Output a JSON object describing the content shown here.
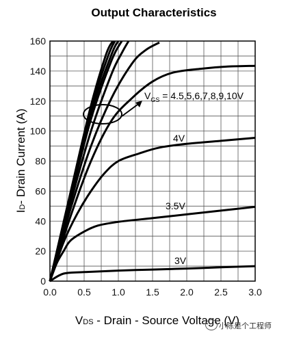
{
  "chart_data": {
    "type": "line",
    "title": "Output Characteristics",
    "xlabel": "V DS - Drain - Source Voltage (V)",
    "xlabel_sub": "DS",
    "xlabel_main": "V",
    "xlabel_rest": " - Drain - Source Voltage (V)",
    "ylabel": "I D - Drain Current (A)",
    "ylabel_main": "I",
    "ylabel_sub": "D",
    "ylabel_rest": "- Drain Current (A)",
    "xlim": [
      0,
      3.0
    ],
    "ylim": [
      0,
      160
    ],
    "xticks": [
      "0.0",
      "0.5",
      "1.0",
      "1.5",
      "2.0",
      "2.5",
      "3.0"
    ],
    "yticks": [
      "0",
      "20",
      "40",
      "60",
      "80",
      "100",
      "120",
      "140",
      "160"
    ],
    "grid": true,
    "series": [
      {
        "name": "3V",
        "x": [
          0,
          0.2,
          0.5,
          1.0,
          1.5,
          2.0,
          2.5,
          3.0
        ],
        "y": [
          0,
          5,
          6,
          7,
          7.7,
          8.4,
          9.2,
          10
        ]
      },
      {
        "name": "3.5V",
        "x": [
          0,
          0.1,
          0.2,
          0.3,
          0.5,
          0.7,
          1.0,
          1.5,
          2.0,
          2.5,
          3.0
        ],
        "y": [
          0,
          12,
          20,
          27,
          33,
          37,
          39.5,
          42,
          44.5,
          47,
          49.5
        ]
      },
      {
        "name": "4V",
        "x": [
          0,
          0.2,
          0.4,
          0.6,
          0.8,
          1.0,
          1.3,
          1.6,
          2.0,
          2.5,
          3.0
        ],
        "y": [
          0,
          26,
          45,
          60,
          72,
          80,
          85,
          89,
          91.5,
          93.5,
          95.5
        ]
      },
      {
        "name": "4.5V",
        "x": [
          0,
          0.3,
          0.6,
          0.9,
          1.2,
          1.5,
          1.8,
          2.2,
          2.6,
          3.0
        ],
        "y": [
          0,
          43,
          80,
          107,
          122,
          133,
          139,
          141.5,
          143,
          143.5
        ]
      },
      {
        "name": "5V",
        "x": [
          0,
          0.3,
          0.6,
          0.9,
          1.2,
          1.4,
          1.6
        ],
        "y": [
          0,
          48,
          90,
          122,
          145,
          154,
          159
        ]
      },
      {
        "name": "6V",
        "x": [
          0,
          0.3,
          0.6,
          0.9,
          1.05,
          1.15
        ],
        "y": [
          0,
          52,
          100,
          138,
          152,
          160
        ]
      },
      {
        "name": "7V",
        "x": [
          0,
          0.3,
          0.6,
          0.9,
          1.05
        ],
        "y": [
          0,
          55,
          108,
          147,
          160
        ]
      },
      {
        "name": "8V",
        "x": [
          0,
          0.3,
          0.6,
          0.9,
          1.0
        ],
        "y": [
          0,
          57,
          112,
          151,
          160
        ]
      },
      {
        "name": "9V",
        "x": [
          0,
          0.3,
          0.6,
          0.85,
          0.95
        ],
        "y": [
          0,
          58,
          115,
          150,
          160
        ]
      },
      {
        "name": "10V",
        "x": [
          0,
          0.3,
          0.6,
          0.82,
          0.92
        ],
        "y": [
          0,
          59,
          117,
          151,
          160
        ]
      }
    ],
    "annotations": {
      "vgs_main": "V",
      "vgs_sub": "GS",
      "vgs_values": " = 4.5,5,6,7,8,9,10V",
      "label_4v": "4V",
      "label_3_5v": "3.5V",
      "label_3v": "3V"
    }
  },
  "watermark": {
    "text": "小陈是个工程师"
  }
}
